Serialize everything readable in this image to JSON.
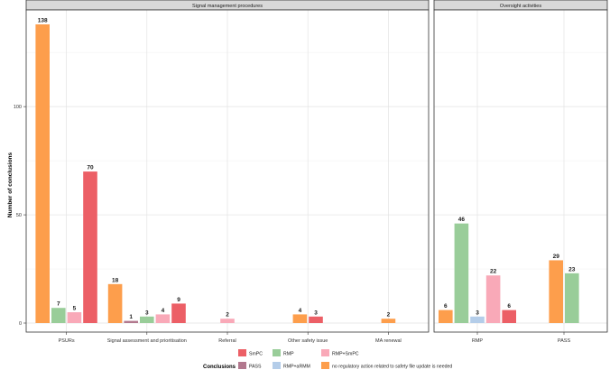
{
  "chart_data": {
    "type": "bar",
    "ylabel": "Number of conclusions",
    "yticks": [
      0,
      50,
      100
    ],
    "ylim": [
      0,
      144
    ],
    "grid": true,
    "legend": {
      "title": "Conclusions",
      "position": "bottom",
      "items": [
        {
          "name": "SmPC",
          "color": "#ec5f66"
        },
        {
          "name": "PASS",
          "color": "#b2788e"
        },
        {
          "name": "RMP",
          "color": "#99cd99"
        },
        {
          "name": "RMP+aRMM",
          "color": "#b4cde9"
        },
        {
          "name": "RMP+SmPC",
          "color": "#f9a9b8"
        },
        {
          "name": "no regulatory action related to safety file update is needed",
          "color": "#fd9e4c"
        }
      ]
    },
    "panels": [
      {
        "title": "Signal management procedures",
        "categories": [
          {
            "name": "PSURs",
            "bars": [
              {
                "series": "no regulatory action related to safety file update is needed",
                "value": 138
              },
              {
                "series": "RMP",
                "value": 7
              },
              {
                "series": "RMP+SmPC",
                "value": 5
              },
              {
                "series": "SmPC",
                "value": 70
              }
            ]
          },
          {
            "name": "Signal assessment and prioritisation",
            "bars": [
              {
                "series": "no regulatory action related to safety file update is needed",
                "value": 18
              },
              {
                "series": "PASS",
                "value": 1
              },
              {
                "series": "RMP",
                "value": 3
              },
              {
                "series": "RMP+SmPC",
                "value": 4
              },
              {
                "series": "SmPC",
                "value": 9
              }
            ]
          },
          {
            "name": "Referral",
            "bars": [
              {
                "series": "RMP+SmPC",
                "value": 2
              }
            ]
          },
          {
            "name": "Other safety issue",
            "bars": [
              {
                "series": "no regulatory action related to safety file update is needed",
                "value": 4
              },
              {
                "series": "SmPC",
                "value": 3
              }
            ]
          },
          {
            "name": "MA renewal",
            "bars": [
              {
                "series": "no regulatory action related to safety file update is needed",
                "value": 2
              }
            ]
          }
        ]
      },
      {
        "title": "Oversight activities",
        "categories": [
          {
            "name": "RMP",
            "bars": [
              {
                "series": "no regulatory action related to safety file update is needed",
                "value": 6
              },
              {
                "series": "RMP",
                "value": 46
              },
              {
                "series": "RMP+aRMM",
                "value": 3
              },
              {
                "series": "RMP+SmPC",
                "value": 22
              },
              {
                "series": "SmPC",
                "value": 6
              }
            ]
          },
          {
            "name": "PASS",
            "bars": [
              {
                "series": "no regulatory action related to safety file update is needed",
                "value": 29
              },
              {
                "series": "RMP",
                "value": 23
              }
            ]
          }
        ]
      }
    ]
  }
}
